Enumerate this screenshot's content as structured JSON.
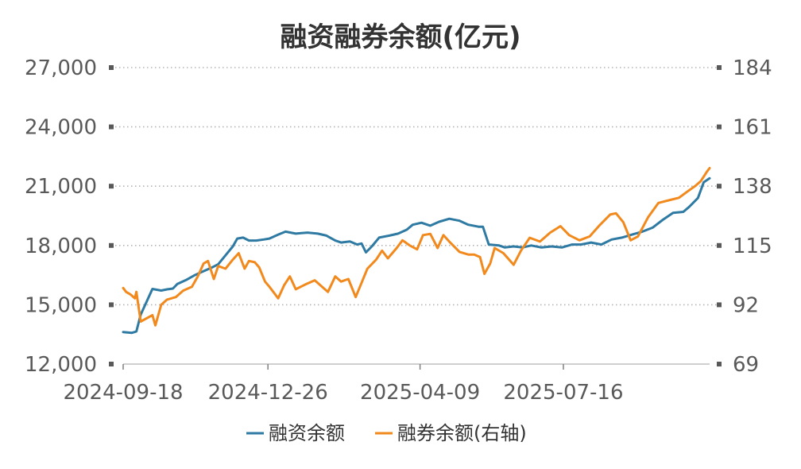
{
  "chart_data": {
    "type": "line",
    "title": "融资融券余额(亿元)",
    "xlabel": "",
    "ylabel": "",
    "ylabel_right": "",
    "x_ticks": [
      "2024-09-18",
      "2024-12-26",
      "2025-04-09",
      "2025-07-16"
    ],
    "y_left_ticks": [
      "12,000",
      "15,000",
      "18,000",
      "21,000",
      "24,000",
      "27,000"
    ],
    "y_right_ticks": [
      "69",
      "92",
      "115",
      "138",
      "161",
      "184"
    ],
    "ylim_left": [
      12000,
      27000
    ],
    "ylim_right": [
      69,
      184
    ],
    "grid": true,
    "legend_position": "bottom",
    "x_range": [
      "2024-09-18",
      "2025-10-24"
    ],
    "series": [
      {
        "name": "融资余额",
        "axis": "left",
        "color": "#2e7aa3",
        "points": [
          [
            "2024-09-18",
            13620
          ],
          [
            "2024-09-24",
            13580
          ],
          [
            "2024-09-27",
            13650
          ],
          [
            "2024-09-30",
            14500
          ],
          [
            "2024-10-08",
            15800
          ],
          [
            "2024-10-14",
            15720
          ],
          [
            "2024-10-18",
            15780
          ],
          [
            "2024-10-22",
            15820
          ],
          [
            "2024-10-25",
            16050
          ],
          [
            "2024-10-31",
            16250
          ],
          [
            "2024-11-06",
            16500
          ],
          [
            "2024-11-12",
            16700
          ],
          [
            "2024-11-18",
            16900
          ],
          [
            "2024-11-22",
            17050
          ],
          [
            "2024-11-27",
            17500
          ],
          [
            "2024-12-02",
            17950
          ],
          [
            "2024-12-05",
            18350
          ],
          [
            "2024-12-09",
            18400
          ],
          [
            "2024-12-13",
            18250
          ],
          [
            "2024-12-18",
            18250
          ],
          [
            "2024-12-23",
            18300
          ],
          [
            "2024-12-27",
            18350
          ],
          [
            "2025-01-02",
            18550
          ],
          [
            "2025-01-07",
            18700
          ],
          [
            "2025-01-14",
            18600
          ],
          [
            "2025-01-22",
            18650
          ],
          [
            "2025-01-29",
            18600
          ],
          [
            "2025-02-04",
            18500
          ],
          [
            "2025-02-10",
            18250
          ],
          [
            "2025-02-14",
            18150
          ],
          [
            "2025-02-20",
            18200
          ],
          [
            "2025-02-25",
            18050
          ],
          [
            "2025-02-28",
            18100
          ],
          [
            "2025-03-03",
            17650
          ],
          [
            "2025-03-07",
            17950
          ],
          [
            "2025-03-12",
            18400
          ],
          [
            "2025-03-19",
            18500
          ],
          [
            "2025-03-25",
            18600
          ],
          [
            "2025-03-31",
            18800
          ],
          [
            "2025-04-04",
            19050
          ],
          [
            "2025-04-10",
            19150
          ],
          [
            "2025-04-16",
            19000
          ],
          [
            "2025-04-22",
            19200
          ],
          [
            "2025-04-29",
            19350
          ],
          [
            "2025-05-06",
            19250
          ],
          [
            "2025-05-12",
            19050
          ],
          [
            "2025-05-19",
            18950
          ],
          [
            "2025-05-22",
            18950
          ],
          [
            "2025-05-26",
            18050
          ],
          [
            "2025-06-02",
            18000
          ],
          [
            "2025-06-06",
            17900
          ],
          [
            "2025-06-12",
            17950
          ],
          [
            "2025-06-18",
            17900
          ],
          [
            "2025-06-24",
            18000
          ],
          [
            "2025-07-01",
            17900
          ],
          [
            "2025-07-08",
            17950
          ],
          [
            "2025-07-15",
            17900
          ],
          [
            "2025-07-22",
            18050
          ],
          [
            "2025-07-28",
            18050
          ],
          [
            "2025-08-04",
            18150
          ],
          [
            "2025-08-11",
            18050
          ],
          [
            "2025-08-18",
            18300
          ],
          [
            "2025-08-25",
            18400
          ],
          [
            "2025-09-01",
            18550
          ],
          [
            "2025-09-08",
            18700
          ],
          [
            "2025-09-15",
            18900
          ],
          [
            "2025-09-22",
            19300
          ],
          [
            "2025-09-29",
            19650
          ],
          [
            "2025-10-06",
            19700
          ],
          [
            "2025-10-10",
            19950
          ],
          [
            "2025-10-16",
            20400
          ],
          [
            "2025-10-20",
            21200
          ],
          [
            "2025-10-24",
            21400
          ]
        ]
      },
      {
        "name": "融券余额(右轴)",
        "axis": "right",
        "color": "#f2891d",
        "points": [
          [
            "2024-09-18",
            98.5
          ],
          [
            "2024-09-20",
            97.0
          ],
          [
            "2024-09-23",
            96.0
          ],
          [
            "2024-09-26",
            94.5
          ],
          [
            "2024-09-27",
            97.0
          ],
          [
            "2024-09-30",
            85.5
          ],
          [
            "2024-10-08",
            88.0
          ],
          [
            "2024-10-10",
            84.0
          ],
          [
            "2024-10-14",
            92.0
          ],
          [
            "2024-10-18",
            94.0
          ],
          [
            "2024-10-24",
            95.0
          ],
          [
            "2024-10-29",
            97.5
          ],
          [
            "2024-11-04",
            99.0
          ],
          [
            "2024-11-08",
            103.0
          ],
          [
            "2024-11-12",
            108.0
          ],
          [
            "2024-11-15",
            109.0
          ],
          [
            "2024-11-19",
            102.0
          ],
          [
            "2024-11-22",
            107.0
          ],
          [
            "2024-11-27",
            106.0
          ],
          [
            "2024-12-02",
            109.5
          ],
          [
            "2024-12-06",
            112.0
          ],
          [
            "2024-12-10",
            106.0
          ],
          [
            "2024-12-13",
            109.0
          ],
          [
            "2024-12-17",
            108.5
          ],
          [
            "2024-12-20",
            106.5
          ],
          [
            "2024-12-24",
            101.0
          ],
          [
            "2024-12-27",
            99.0
          ],
          [
            "2025-01-02",
            94.5
          ],
          [
            "2025-01-06",
            99.5
          ],
          [
            "2025-01-10",
            103.0
          ],
          [
            "2025-01-14",
            98.0
          ],
          [
            "2025-01-21",
            100.0
          ],
          [
            "2025-01-27",
            101.5
          ],
          [
            "2025-02-05",
            97.0
          ],
          [
            "2025-02-10",
            103.0
          ],
          [
            "2025-02-14",
            101.0
          ],
          [
            "2025-02-19",
            102.0
          ],
          [
            "2025-02-24",
            95.0
          ],
          [
            "2025-02-28",
            100.5
          ],
          [
            "2025-03-04",
            106.0
          ],
          [
            "2025-03-10",
            109.5
          ],
          [
            "2025-03-14",
            113.0
          ],
          [
            "2025-03-18",
            110.0
          ],
          [
            "2025-03-24",
            114.0
          ],
          [
            "2025-03-28",
            117.0
          ],
          [
            "2025-04-02",
            115.0
          ],
          [
            "2025-04-07",
            113.5
          ],
          [
            "2025-04-11",
            119.0
          ],
          [
            "2025-04-16",
            119.5
          ],
          [
            "2025-04-21",
            114.0
          ],
          [
            "2025-04-25",
            119.0
          ],
          [
            "2025-04-29",
            116.5
          ],
          [
            "2025-05-06",
            112.5
          ],
          [
            "2025-05-12",
            111.5
          ],
          [
            "2025-05-16",
            111.5
          ],
          [
            "2025-05-20",
            110.5
          ],
          [
            "2025-05-23",
            104.0
          ],
          [
            "2025-05-27",
            108.0
          ],
          [
            "2025-05-30",
            114.0
          ],
          [
            "2025-06-05",
            112.0
          ],
          [
            "2025-06-12",
            107.5
          ],
          [
            "2025-06-17",
            113.0
          ],
          [
            "2025-06-23",
            118.0
          ],
          [
            "2025-06-30",
            116.5
          ],
          [
            "2025-07-07",
            120.0
          ],
          [
            "2025-07-14",
            122.5
          ],
          [
            "2025-07-20",
            119.0
          ],
          [
            "2025-07-27",
            117.0
          ],
          [
            "2025-08-03",
            118.5
          ],
          [
            "2025-08-10",
            123.0
          ],
          [
            "2025-08-17",
            127.0
          ],
          [
            "2025-08-21",
            127.5
          ],
          [
            "2025-08-26",
            124.0
          ],
          [
            "2025-08-31",
            117.0
          ],
          [
            "2025-09-05",
            118.5
          ],
          [
            "2025-09-12",
            126.0
          ],
          [
            "2025-09-19",
            131.5
          ],
          [
            "2025-09-26",
            132.5
          ],
          [
            "2025-10-03",
            133.5
          ],
          [
            "2025-10-09",
            136.0
          ],
          [
            "2025-10-14",
            138.0
          ],
          [
            "2025-10-18",
            140.0
          ],
          [
            "2025-10-22",
            143.5
          ],
          [
            "2025-10-24",
            145.0
          ]
        ]
      }
    ]
  }
}
